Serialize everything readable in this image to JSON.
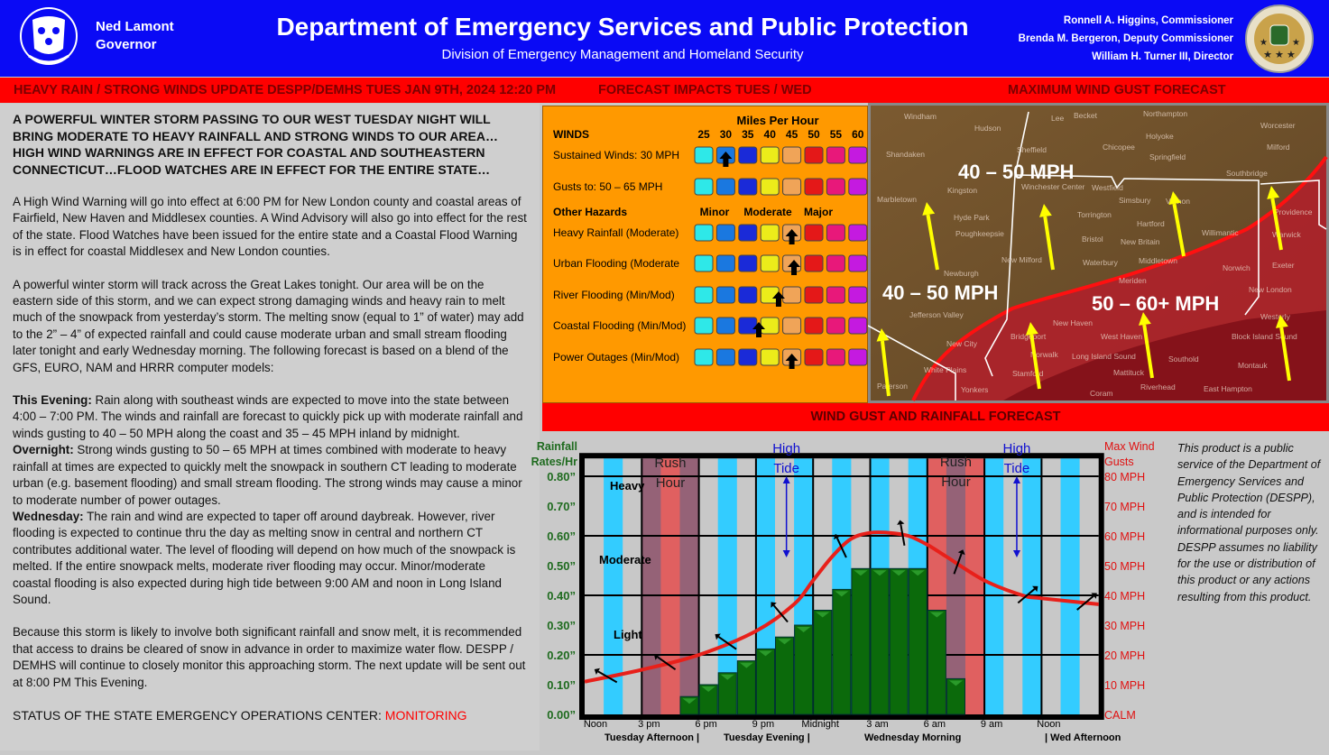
{
  "header": {
    "governor_name": "Ned Lamont",
    "governor_title": "Governor",
    "title": "Department of Emergency Services and Public Protection",
    "subtitle": "Division of Emergency Management and Homeland Security",
    "officials": [
      "Ronnell A. Higgins, Commissioner",
      "Brenda M. Bergeron, Deputy Commissioner",
      "William H. Turner III, Director"
    ]
  },
  "section_bar": {
    "update": "HEAVY RAIN / STRONG WINDS UPDATE DESPP/DEMHS TUES JAN 9TH, 2024 12:20 PM",
    "impacts": "FORECAST IMPACTS TUES / WED",
    "map": "MAXIMUM WIND GUST FORECAST",
    "chart": "WIND GUST AND RAINFALL FORECAST"
  },
  "left": {
    "headline": "A POWERFUL WINTER STORM PASSING TO OUR WEST TUESDAY NIGHT WILL BRING MODERATE TO HEAVY RAINFALL AND STRONG WINDS TO OUR AREA…HIGH WIND WARNINGS ARE IN EFFECT FOR COASTAL AND SOUTHEASTERN CONNECTICUT…FLOOD WATCHES ARE IN EFFECT FOR THE ENTIRE STATE…",
    "p1": "A High Wind Warning will go into effect at 6:00 PM for New London county and coastal areas of Fairfield, New Haven and Middlesex counties. A Wind Advisory will also go into effect for the rest of the state.  Flood Watches have been issued for the entire state and a Coastal Flood Warning is in effect for coastal Middlesex and New London counties.",
    "p2": "A powerful winter storm will track across the Great Lakes tonight.   Our area will be on the eastern side of this storm, and we can expect strong damaging winds and heavy rain to melt much of the snowpack from yesterday’s storm.  The melting snow (equal to 1” of water) may add to the 2” – 4”  of expected rainfall and could cause moderate urban and small stream flooding later tonight and early Wednesday morning.  The following forecast is based on a blend of the GFS, EURO, NAM and HRRR computer models:",
    "evening_label": "This Evening:",
    "evening": " Rain along with southeast winds are expected to move into the state between 4:00 – 7:00 PM.  The winds and rainfall are forecast to quickly pick up with moderate rainfall and winds gusting to 40 – 50 MPH along the coast and 35 – 45 MPH inland by midnight.",
    "overnight_label": "Overnight:",
    "overnight": " Strong winds gusting to 50 – 65 MPH at times combined with moderate to heavy rainfall at times are expected to quickly melt the snowpack in southern CT leading to moderate urban (e.g. basement flooding) and small stream flooding.  The strong winds may cause a minor to moderate number of power outages.",
    "wednesday_label": "Wednesday:",
    "wednesday": " The rain and wind are expected to taper off around daybreak.  However, river flooding is expected to continue thru the day as melting snow in central and northern CT contributes additional water.  The level of flooding will depend on how much of the snowpack is melted.  If the entire snowpack melts, moderate river flooding may occur.  Minor/moderate coastal flooding is also expected during high tide between 9:00 AM and noon in Long Island Sound.",
    "p3": "Because this storm is likely to involve both significant rainfall and snow melt, it is recommended that access to drains be cleared of snow in advance in order to maximize water flow.  DESPP / DEMHS will continue to closely monitor this approaching storm. The next update will be sent out at 8:00 PM This Evening.",
    "status_label": "STATUS OF THE STATE EMERGENCY OPERATIONS CENTER: ",
    "status_value": "MONITORING",
    "status_color": "#ff0000"
  },
  "impacts": {
    "scale_title": "Miles Per Hour",
    "winds_heading": "WINDS",
    "mph_ticks": [
      "25",
      "30",
      "35",
      "40",
      "45",
      "50",
      "55",
      "60",
      "65"
    ],
    "other_heading": "Other Hazards",
    "severity_labels": [
      "Minor",
      "Moderate",
      "Major"
    ],
    "scale_colors": [
      "#2ee8e8",
      "#1a78e0",
      "#1a2ad8",
      "#ecec1a",
      "#f0a458",
      "#e41818",
      "#e8187a",
      "#c41ae0",
      "#6218d0"
    ],
    "rows": [
      {
        "label": "Sustained Winds:  30 MPH",
        "level_index": 1
      },
      {
        "label": "Gusts to:        50 – 65 MPH",
        "level_index": 8
      },
      {
        "label": "Heavy Rainfall (Moderate)",
        "level_index": 4
      },
      {
        "label": "Urban Flooding (Moderate",
        "level_index": 4.1
      },
      {
        "label": "River Flooding (Min/Mod)",
        "level_index": 3.4
      },
      {
        "label": "Coastal Flooding (Min/Mod)",
        "level_index": 2.5
      },
      {
        "label": "Power Outages (Min/Mod)",
        "level_index": 4
      }
    ]
  },
  "map": {
    "zones": [
      "40 – 50 MPH",
      "40 – 50 MPH",
      "50 – 60+ MPH"
    ],
    "places": [
      "Windham",
      "Hudson",
      "Lee",
      "Becket",
      "Northampton",
      "Worcester",
      "Holyoke",
      "Chicopee",
      "Springfield",
      "Milford",
      "Shandaken",
      "Sheffield",
      "Westfield",
      "Kingston",
      "Marbletown",
      "Winchester Center",
      "Simsbury",
      "Vernon",
      "Southbridge",
      "Hyde Park",
      "Poughkeepsie",
      "Torrington",
      "Hartford",
      "Providence",
      "Bristol",
      "New Britain",
      "Willimantic",
      "Warwick",
      "Newburgh",
      "Waterbury",
      "Middletown",
      "Norwich",
      "Exeter",
      "New Milford",
      "Meriden",
      "Jefferson Valley",
      "New Haven",
      "New London",
      "Westerly",
      "West Haven",
      "Block Island Sound",
      "Bridgeport",
      "New City",
      "Norwalk",
      "Long Island Sound",
      "Southold",
      "Montauk",
      "White Plains",
      "Stamford",
      "Mattituck",
      "Paterson",
      "Yonkers",
      "Coram",
      "Riverhead",
      "East Hampton"
    ]
  },
  "chart_data": {
    "type": "bar",
    "left_axis_label": [
      "Rainfall",
      "Rates/Hr"
    ],
    "right_axis_label": [
      "Max Wind",
      "Gusts"
    ],
    "left_ticks": [
      "0.00”",
      "0.10”",
      "0.20”",
      "0.30”",
      "0.40”",
      "0.50”",
      "0.60”",
      "0.70”",
      "0.80”"
    ],
    "right_ticks": [
      "CALM",
      "10 MPH",
      "20 MPH",
      "30 MPH",
      "40 MPH",
      "50 MPH",
      "60 MPH",
      "70 MPH",
      "80 MPH"
    ],
    "ylim": [
      0,
      0.8
    ],
    "right_ylim": [
      0,
      80
    ],
    "x_ticks": [
      "Noon",
      "3 pm",
      "6 pm",
      "9 pm",
      "Midnight",
      "3 am",
      "6 am",
      "9 am",
      "Noon"
    ],
    "periods": [
      "Tuesday Afternoon   |",
      "Tuesday Evening    |",
      "Wednesday Morning",
      "| Wed Afternoon"
    ],
    "intensity_labels": [
      "Heavy",
      "Moderate",
      "Light"
    ],
    "annotations": {
      "rush_hour": [
        "Rush",
        "Hour"
      ],
      "high_tide": [
        "High",
        "Tide"
      ]
    },
    "rush_hour_windows": [
      [
        "3 pm",
        "6 pm"
      ],
      [
        "6 am",
        "9 am"
      ]
    ],
    "rainfall": {
      "hours_from_noon": [
        5,
        6,
        7,
        8,
        9,
        10,
        11,
        12,
        13,
        14,
        15,
        16,
        17,
        18,
        19
      ],
      "values": [
        0.06,
        0.1,
        0.14,
        0.18,
        0.22,
        0.26,
        0.3,
        0.35,
        0.42,
        0.49,
        0.49,
        0.49,
        0.49,
        0.35,
        0.12
      ]
    },
    "wind_gusts_mph": {
      "hours_from_noon": [
        0,
        3,
        6,
        9,
        11,
        12,
        13,
        14,
        15,
        16,
        17,
        18,
        19,
        21,
        23,
        24,
        27
      ],
      "values": [
        11,
        15,
        20,
        28,
        37,
        45,
        53,
        59,
        61,
        61,
        60,
        57,
        53,
        45,
        40,
        39,
        37
      ]
    },
    "wind_direction_arrows": [
      {
        "hour": 1.2,
        "direction_deg": -60
      },
      {
        "hour": 4.3,
        "direction_deg": -55
      },
      {
        "hour": 7.5,
        "direction_deg": -55
      },
      {
        "hour": 10.3,
        "direction_deg": -40
      },
      {
        "hour": 13.5,
        "direction_deg": -25
      },
      {
        "hour": 16.7,
        "direction_deg": -10
      },
      {
        "hour": 19.6,
        "direction_deg": 20
      },
      {
        "hour": 23.2,
        "direction_deg": 50
      },
      {
        "hour": 26.3,
        "direction_deg": 50
      }
    ],
    "colors": {
      "rain": "#0b6a0b",
      "wind": "#e8201a",
      "left_axis": "#1f6b1f",
      "right_axis": "#e01010",
      "tide": "#1010d0"
    }
  },
  "disclaimer": "This product is a public service of the Department of Emergency Services and Public Protection (DESPP), and is intended for informational purposes only.  DESPP assumes no liability for the use or distribution of this product or any actions resulting from this product."
}
